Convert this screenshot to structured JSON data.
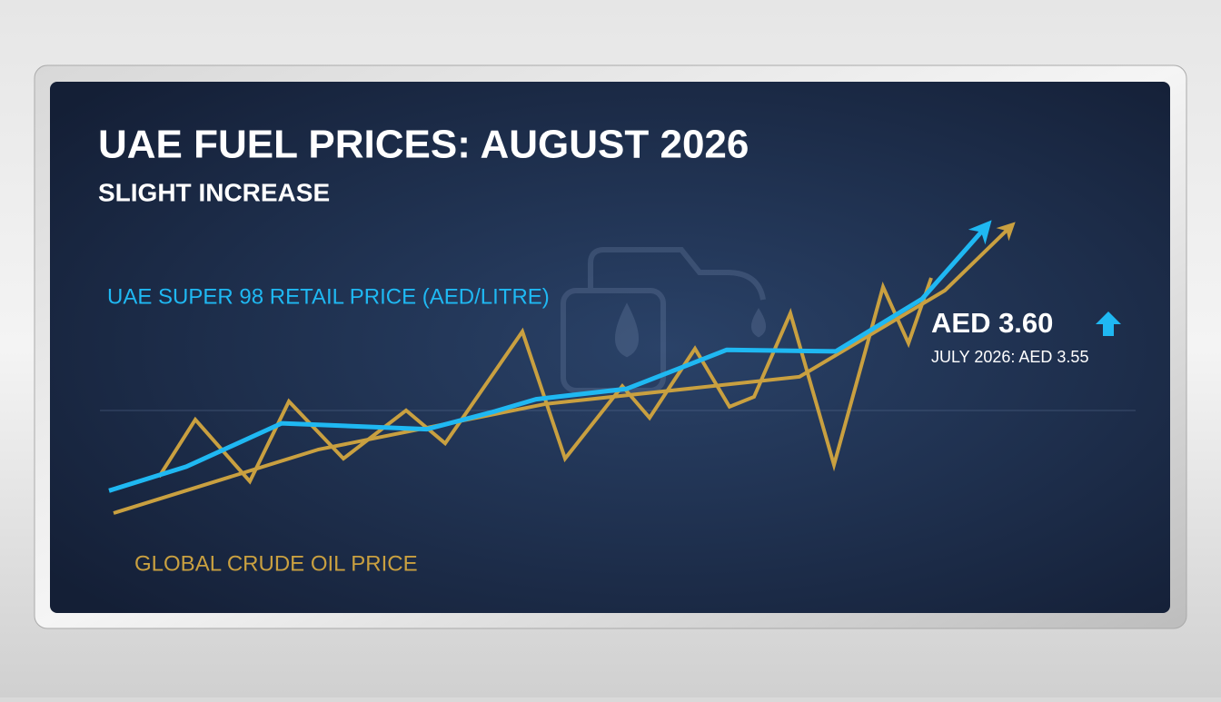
{
  "chart_data": {
    "type": "line",
    "title": "UAE FUEL PRICES: AUGUST 2026",
    "subtitle": "SLIGHT INCREASE",
    "xlim": [
      0,
      100
    ],
    "ylim": [
      0,
      100
    ],
    "series": [
      {
        "name": "UAE SUPER 98 RETAIL PRICE (AED/LITRE)",
        "color": "#1fb8f2",
        "x": [
          0,
          8.5,
          19,
          35,
          42.5,
          47,
          57,
          68,
          80,
          89.5,
          96.5
        ],
        "values": [
          9,
          17,
          31.5,
          29.5,
          35.5,
          39.5,
          43,
          56,
          55.5,
          73,
          97
        ]
      },
      {
        "name": "GLOBAL CRUDE OIL PRICE",
        "color": "#c9a040",
        "x": [
          5.5,
          9.5,
          15.5,
          19.8,
          25.8,
          32.7,
          37,
          45.5,
          50.2,
          56.5,
          59.5,
          64.5,
          68.3,
          71,
          75,
          79.8,
          85.2,
          88,
          90.5
        ],
        "values": [
          13.6,
          32.7,
          12.1,
          38.8,
          19.7,
          35.8,
          24.8,
          62.1,
          19.7,
          43.9,
          33.3,
          56.4,
          37,
          40.3,
          68.2,
          17.6,
          77,
          58.2,
          80
        ]
      }
    ],
    "trend": {
      "color": "#c9a040",
      "x": [
        0.5,
        23,
        48,
        76,
        92,
        99.2
      ],
      "values": [
        1.5,
        22.7,
        37.9,
        47,
        75.8,
        97
      ]
    },
    "annotation": {
      "value": "AED 3.60",
      "previous": "JULY 2026: AED 3.55"
    }
  }
}
